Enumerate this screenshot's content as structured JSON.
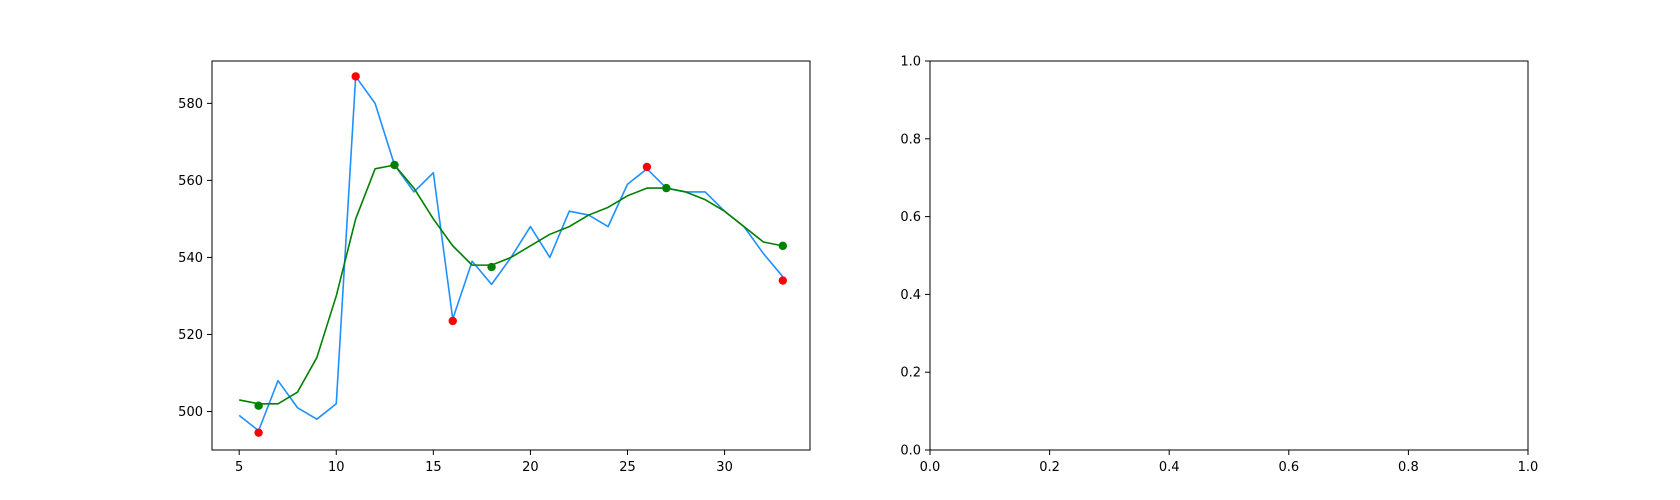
{
  "chart_data": [
    {
      "type": "line",
      "title": "",
      "xlabel": "",
      "ylabel": "",
      "xlim": [
        3.6,
        34.4
      ],
      "ylim": [
        490,
        591
      ],
      "x_ticks": [
        5,
        10,
        15,
        20,
        25,
        30
      ],
      "y_ticks": [
        500,
        520,
        540,
        560,
        580
      ],
      "grid": false,
      "legend": "none",
      "colors": {
        "raw": "#1e90ff",
        "smooth": "#008000",
        "raw_points": "#ff0000",
        "smooth_points": "#008000"
      },
      "series": [
        {
          "kind": "line",
          "color": "#1e90ff",
          "x": [
            5,
            6,
            7,
            8,
            9,
            10,
            11,
            12,
            13,
            14,
            15,
            16,
            17,
            18,
            19,
            20,
            21,
            22,
            23,
            24,
            25,
            26,
            27,
            28,
            29,
            30,
            31,
            32,
            33
          ],
          "y": [
            499,
            495,
            508,
            501,
            498,
            502,
            587,
            580,
            564,
            557,
            562,
            524,
            539,
            533,
            540,
            548,
            540,
            552,
            551,
            548,
            559,
            563,
            558,
            557,
            557,
            552,
            548,
            541,
            535
          ]
        },
        {
          "kind": "line",
          "color": "#008000",
          "x": [
            5,
            6,
            7,
            8,
            9,
            10,
            11,
            12,
            13,
            14,
            15,
            16,
            17,
            18,
            19,
            20,
            21,
            22,
            23,
            24,
            25,
            26,
            27,
            28,
            29,
            30,
            31,
            32,
            33
          ],
          "y": [
            503,
            502,
            502,
            505,
            514,
            530,
            550,
            563,
            564,
            558,
            550,
            543,
            538,
            538,
            540,
            543,
            546,
            548,
            551,
            553,
            556,
            558,
            558,
            557,
            555,
            552,
            548,
            544,
            543
          ]
        },
        {
          "kind": "scatter",
          "color": "#ff0000",
          "x": [
            6,
            11,
            16,
            26,
            33
          ],
          "y": [
            494.5,
            587,
            523.5,
            563.5,
            534
          ]
        },
        {
          "kind": "scatter",
          "color": "#008000",
          "x": [
            6,
            13,
            18,
            27,
            33
          ],
          "y": [
            501.5,
            564,
            537.5,
            558,
            543
          ]
        }
      ]
    },
    {
      "type": "line",
      "title": "",
      "xlabel": "",
      "ylabel": "",
      "xlim": [
        0,
        1
      ],
      "ylim": [
        0,
        1
      ],
      "x_ticks": [
        "0.0",
        "0.2",
        "0.4",
        "0.6",
        "0.8",
        "1.0"
      ],
      "y_ticks": [
        "0.0",
        "0.2",
        "0.4",
        "0.6",
        "0.8",
        "1.0"
      ],
      "grid": false,
      "legend": "none",
      "series": []
    }
  ]
}
